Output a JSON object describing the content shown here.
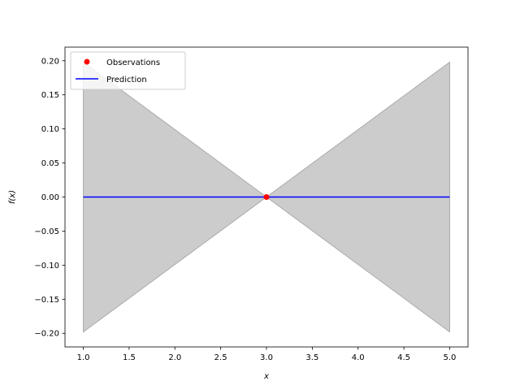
{
  "chart_data": {
    "type": "line",
    "title": "",
    "xlabel": "x",
    "ylabel": "f(x)",
    "xlim": [
      0.8,
      5.2
    ],
    "ylim": [
      -0.22,
      0.22
    ],
    "xticks": [
      1.0,
      1.5,
      2.0,
      2.5,
      3.0,
      3.5,
      4.0,
      4.5,
      5.0
    ],
    "xtick_labels": [
      "1.0",
      "1.5",
      "2.0",
      "2.5",
      "3.0",
      "3.5",
      "4.0",
      "4.5",
      "5.0"
    ],
    "yticks": [
      -0.2,
      -0.15,
      -0.1,
      -0.05,
      0.0,
      0.05,
      0.1,
      0.15,
      0.2
    ],
    "ytick_labels": [
      "−0.20",
      "−0.15",
      "−0.10",
      "−0.05",
      "0.00",
      "0.05",
      "0.10",
      "0.15",
      "0.20"
    ],
    "grid": false,
    "legend_position": "top-left",
    "series": [
      {
        "name": "Observations",
        "kind": "scatter",
        "color": "#ff0000",
        "x": [
          3.0
        ],
        "y": [
          0.0
        ]
      },
      {
        "name": "Prediction",
        "kind": "line",
        "color": "#0000ff",
        "x": [
          1.0,
          3.0,
          5.0
        ],
        "y": [
          0.0,
          0.0,
          0.0
        ]
      }
    ],
    "confidence_band": {
      "color": "#cccccc",
      "edge_color": "#aaaaaa",
      "x": [
        1.0,
        3.0,
        5.0
      ],
      "upper": [
        0.198,
        0.0,
        0.198
      ],
      "lower": [
        -0.198,
        0.0,
        -0.198
      ]
    }
  }
}
